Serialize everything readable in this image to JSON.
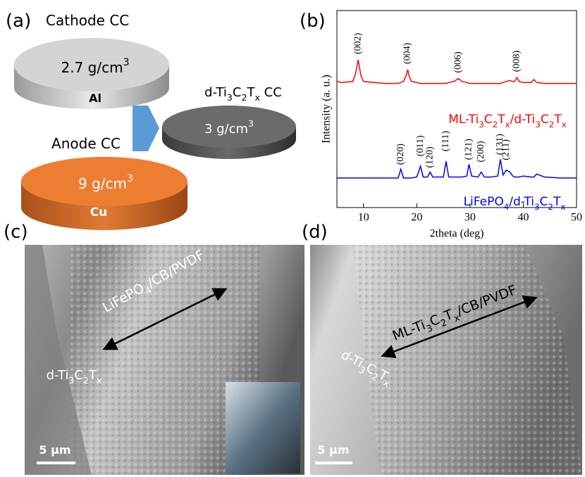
{
  "panel_a": {
    "label": "(a)",
    "cathode_title": "Cathode CC",
    "cathode_density": "2.7 g/cm3",
    "cathode_metal": "Al",
    "mxene_title": "d-Ti3C2Tx CC",
    "mxene_density": "3 g/cm3",
    "anode_title": "Anode CC",
    "anode_density": "9 g/cm3",
    "anode_metal": "Cu"
  },
  "chart_data": {
    "type": "line",
    "label": "(b)",
    "x_label": "2theta (deg)",
    "y_label": "Intensity (a. u.)",
    "xlim": [
      5,
      50
    ],
    "xticks": [
      10,
      20,
      30,
      40,
      50
    ],
    "ylim": [
      0,
      100
    ],
    "x": [
      5,
      6,
      8,
      8.5,
      9,
      9.5,
      10,
      12,
      14,
      16,
      16.5,
      17,
      17.5,
      18,
      18.3,
      18.6,
      19,
      20,
      20.7,
      21.2,
      22,
      22.5,
      23,
      25,
      25.5,
      26,
      27,
      27.8,
      28.5,
      29.4,
      29.8,
      30.3,
      31.5,
      32.1,
      32.7,
      34,
      35.2,
      35.7,
      36.2,
      36.8,
      37.5,
      38,
      38.4,
      38.8,
      39.2,
      40,
      41.5,
      42,
      42.5,
      44,
      47,
      50
    ],
    "series": [
      {
        "name": "ML-Ti3C2Tx/d-Ti3C2Tx",
        "color": "#ff0000",
        "values": [
          64,
          63.5,
          64,
          68,
          75,
          67,
          64,
          63.5,
          63,
          63,
          63,
          63.5,
          64,
          67,
          70,
          66.5,
          64,
          63.5,
          63,
          63,
          63,
          63,
          63,
          63,
          63,
          63.5,
          64,
          65.5,
          64,
          63.5,
          63,
          63,
          63,
          63,
          63,
          63,
          63,
          63,
          63.5,
          64,
          64.5,
          64,
          64,
          66,
          64,
          63.5,
          63.5,
          65,
          63.5,
          63,
          63,
          63
        ]
      },
      {
        "name": "LiFePO4/d-Ti3C2Tx",
        "color": "#0000ff",
        "values": [
          15,
          15,
          15,
          15,
          15,
          15,
          15,
          15,
          15,
          15,
          15,
          19.5,
          15,
          15,
          15,
          15,
          15,
          15.5,
          21,
          15.5,
          15.5,
          18,
          15.5,
          15.5,
          23.5,
          15.5,
          15.5,
          15.5,
          15.5,
          16,
          22,
          16,
          15.5,
          18,
          15.5,
          15.5,
          16,
          24.5,
          16.5,
          19,
          18,
          16,
          15.5,
          15.5,
          15.5,
          16,
          15.5,
          15.5,
          17,
          15.5,
          15,
          15
        ]
      }
    ],
    "annotations": [
      {
        "text": "(002)",
        "x": 9,
        "series": 0
      },
      {
        "text": "(004)",
        "x": 18.3,
        "series": 0
      },
      {
        "text": "(006)",
        "x": 27.8,
        "series": 0
      },
      {
        "text": "(008)",
        "x": 38.8,
        "series": 0
      },
      {
        "text": "(020)",
        "x": 17,
        "series": 1
      },
      {
        "text": "(011)",
        "x": 20.7,
        "series": 1
      },
      {
        "text": "(120)",
        "x": 22.5,
        "series": 1
      },
      {
        "text": "(111)",
        "x": 25.5,
        "series": 1
      },
      {
        "text": "(121)",
        "x": 29.8,
        "series": 1
      },
      {
        "text": "(200)",
        "x": 32.1,
        "series": 1
      },
      {
        "text": "(131)",
        "x": 35.7,
        "series": 1
      },
      {
        "text": "(211)",
        "x": 36.8,
        "series": 1
      }
    ]
  },
  "panel_c": {
    "label": "(c)",
    "layer_label": "LiFePO4/CB/PVDF",
    "cc_label": "d-Ti3C2Tx",
    "scale_bar": "5 μm"
  },
  "panel_d": {
    "label": "(d)",
    "layer_label": "ML-Ti3C2Tx/CB/PVDF",
    "cc_label": "d-Ti3C2Tx",
    "scale_bar": "5 μm"
  }
}
